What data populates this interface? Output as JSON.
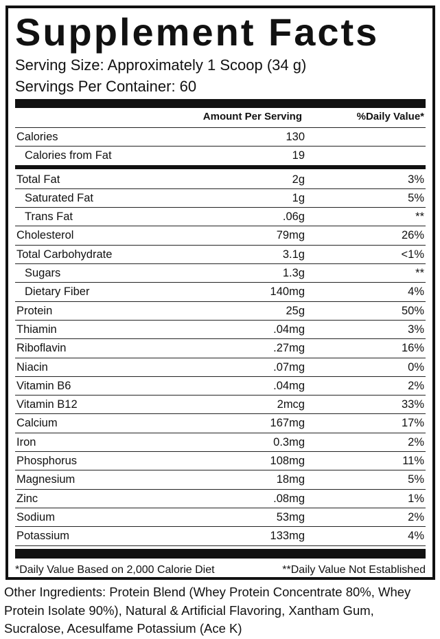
{
  "title": "Supplement Facts",
  "serving_size": "Serving Size: Approximately 1 Scoop (34 g)",
  "servings_per_container": "Servings Per Container: 60",
  "table": {
    "columns": [
      "Amount Per Serving",
      "%Daily Value*"
    ],
    "sections": [
      [
        {
          "name": "Calories",
          "amount": "130",
          "sub": [
            {
              "name": "Calories from Fat",
              "amount": "19"
            }
          ]
        }
      ],
      [
        {
          "name": "Total Fat",
          "amount": "2g",
          "dv": "3%",
          "sub": [
            {
              "name": "Saturated Fat",
              "amount": "1g",
              "dv": "5%"
            },
            {
              "name": "Trans Fat",
              "amount": ".06g",
              "dv": "**"
            }
          ]
        },
        {
          "name": "Cholesterol",
          "amount": "79mg",
          "dv": "26%"
        },
        {
          "name": "Total Carbohydrate",
          "amount": "3.1g",
          "dv": "<1%",
          "sub": [
            {
              "name": "Sugars",
              "amount": "1.3g",
              "dv": "**"
            },
            {
              "name": "Dietary Fiber",
              "amount": "140mg",
              "dv": "4%"
            }
          ]
        },
        {
          "name": "Protein",
          "amount": "25g",
          "dv": "50%"
        },
        {
          "name": "Thiamin",
          "amount": ".04mg",
          "dv": "3%"
        },
        {
          "name": "Riboflavin",
          "amount": ".27mg",
          "dv": "16%"
        },
        {
          "name": "Niacin",
          "amount": ".07mg",
          "dv": "0%"
        },
        {
          "name": "Vitamin B6",
          "amount": ".04mg",
          "dv": "2%"
        },
        {
          "name": "Vitamin B12",
          "amount": "2mcg",
          "dv": "33%"
        },
        {
          "name": "Calcium",
          "amount": "167mg",
          "dv": "17%"
        },
        {
          "name": "Iron",
          "amount": "0.3mg",
          "dv": "2%"
        },
        {
          "name": "Phosphorus",
          "amount": "108mg",
          "dv": "11%"
        },
        {
          "name": "Magnesium",
          "amount": "18mg",
          "dv": "5%"
        },
        {
          "name": "Zinc",
          "amount": ".08mg",
          "dv": "1%"
        },
        {
          "name": "Sodium",
          "amount": "53mg",
          "dv": "2%"
        },
        {
          "name": "Potassium",
          "amount": "133mg",
          "dv": "4%"
        }
      ]
    ]
  },
  "footnotes": [
    "*Daily Value Based on 2,000 Calorie Diet",
    "**Daily Value Not Established"
  ],
  "other_ingredients": "Other Ingredients: Protein Blend (Whey Protein Concentrate 80%, Whey Protein Isolate 90%), Natural & Artificial Flavoring, Xantham Gum, Sucralose, Acesulfame Potassium (Ace K)"
}
